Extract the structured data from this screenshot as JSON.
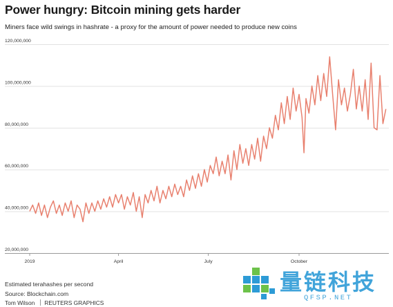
{
  "header": {
    "title": "Power hungry: Bitcoin mining gets harder",
    "subtitle": "Miners face wild swings in hashrate - a proxy for the amount of power needed to produce new coins"
  },
  "footer": {
    "unit_note": "Estimated terahashes per second",
    "source": "Source: Blockchain.com",
    "author": "Tom Wilson",
    "agency": "REUTERS GRAPHICS"
  },
  "watermark": {
    "text_cn": "量链科技",
    "text_en": "QFSP.NET",
    "colors": {
      "main": "#2d9bd6",
      "accent": "#6cc24a"
    }
  },
  "chart_data": {
    "type": "line",
    "title": "Power hungry: Bitcoin mining gets harder",
    "subtitle": "Miners face wild swings in hashrate - a proxy for the amount of power needed to produce new coins",
    "xlabel": "",
    "ylabel": "Estimated terahashes per second",
    "line_color": "#e8806e",
    "grid": "horizontal",
    "ylim": [
      20000000,
      120000000
    ],
    "yticks": [
      {
        "value": 120000000,
        "label": "120,000,000"
      },
      {
        "value": 100000000,
        "label": "100,000,000"
      },
      {
        "value": 80000000,
        "label": "80,000,000"
      },
      {
        "value": 60000000,
        "label": "60,000,000"
      },
      {
        "value": 40000000,
        "label": "40,000,000"
      },
      {
        "value": 20000000,
        "label": "20,000,000"
      }
    ],
    "xlim": [
      "2019-01-01",
      "2019-12-31"
    ],
    "xticks": [
      {
        "date": "2019-01-01",
        "label": "2019"
      },
      {
        "date": "2019-04-01",
        "label": "April"
      },
      {
        "date": "2019-07-01",
        "label": "July"
      },
      {
        "date": "2019-10-01",
        "label": "October"
      }
    ],
    "series": [
      {
        "values": [
          [
            "2019-01-01",
            40000000
          ],
          [
            "2019-01-04",
            43000000
          ],
          [
            "2019-01-07",
            39000000
          ],
          [
            "2019-01-10",
            44000000
          ],
          [
            "2019-01-13",
            38000000
          ],
          [
            "2019-01-16",
            43000000
          ],
          [
            "2019-01-19",
            37000000
          ],
          [
            "2019-01-22",
            42000000
          ],
          [
            "2019-01-25",
            45000000
          ],
          [
            "2019-01-28",
            39000000
          ],
          [
            "2019-01-31",
            43000000
          ],
          [
            "2019-02-03",
            38000000
          ],
          [
            "2019-02-06",
            44000000
          ],
          [
            "2019-02-09",
            40000000
          ],
          [
            "2019-02-12",
            45000000
          ],
          [
            "2019-02-15",
            37000000
          ],
          [
            "2019-02-18",
            43000000
          ],
          [
            "2019-02-21",
            41000000
          ],
          [
            "2019-02-24",
            35000000
          ],
          [
            "2019-02-27",
            44000000
          ],
          [
            "2019-03-02",
            39000000
          ],
          [
            "2019-03-05",
            44000000
          ],
          [
            "2019-03-08",
            40000000
          ],
          [
            "2019-03-11",
            45000000
          ],
          [
            "2019-03-14",
            41000000
          ],
          [
            "2019-03-17",
            46000000
          ],
          [
            "2019-03-20",
            42000000
          ],
          [
            "2019-03-23",
            47000000
          ],
          [
            "2019-03-26",
            42000000
          ],
          [
            "2019-03-29",
            48000000
          ],
          [
            "2019-04-01",
            44000000
          ],
          [
            "2019-04-04",
            48000000
          ],
          [
            "2019-04-07",
            41000000
          ],
          [
            "2019-04-10",
            47000000
          ],
          [
            "2019-04-13",
            43000000
          ],
          [
            "2019-04-16",
            49000000
          ],
          [
            "2019-04-19",
            40000000
          ],
          [
            "2019-04-22",
            47000000
          ],
          [
            "2019-04-25",
            37000000
          ],
          [
            "2019-04-28",
            48000000
          ],
          [
            "2019-05-01",
            44000000
          ],
          [
            "2019-05-04",
            50000000
          ],
          [
            "2019-05-07",
            45000000
          ],
          [
            "2019-05-10",
            52000000
          ],
          [
            "2019-05-13",
            44000000
          ],
          [
            "2019-05-16",
            50000000
          ],
          [
            "2019-05-19",
            46000000
          ],
          [
            "2019-05-22",
            52000000
          ],
          [
            "2019-05-25",
            47000000
          ],
          [
            "2019-05-28",
            53000000
          ],
          [
            "2019-05-31",
            48000000
          ],
          [
            "2019-06-03",
            52000000
          ],
          [
            "2019-06-06",
            47000000
          ],
          [
            "2019-06-09",
            55000000
          ],
          [
            "2019-06-12",
            50000000
          ],
          [
            "2019-06-15",
            57000000
          ],
          [
            "2019-06-18",
            51000000
          ],
          [
            "2019-06-21",
            58000000
          ],
          [
            "2019-06-24",
            52000000
          ],
          [
            "2019-06-27",
            60000000
          ],
          [
            "2019-06-30",
            54000000
          ],
          [
            "2019-07-03",
            62000000
          ],
          [
            "2019-07-06",
            58000000
          ],
          [
            "2019-07-09",
            66000000
          ],
          [
            "2019-07-12",
            57000000
          ],
          [
            "2019-07-15",
            64000000
          ],
          [
            "2019-07-18",
            58000000
          ],
          [
            "2019-07-21",
            67000000
          ],
          [
            "2019-07-24",
            55000000
          ],
          [
            "2019-07-27",
            69000000
          ],
          [
            "2019-07-30",
            60000000
          ],
          [
            "2019-08-02",
            72000000
          ],
          [
            "2019-08-05",
            63000000
          ],
          [
            "2019-08-08",
            70000000
          ],
          [
            "2019-08-11",
            62000000
          ],
          [
            "2019-08-14",
            72000000
          ],
          [
            "2019-08-17",
            65000000
          ],
          [
            "2019-08-20",
            75000000
          ],
          [
            "2019-08-23",
            64000000
          ],
          [
            "2019-08-26",
            76000000
          ],
          [
            "2019-08-29",
            70000000
          ],
          [
            "2019-09-01",
            80000000
          ],
          [
            "2019-09-04",
            75000000
          ],
          [
            "2019-09-07",
            86000000
          ],
          [
            "2019-09-10",
            79000000
          ],
          [
            "2019-09-13",
            92000000
          ],
          [
            "2019-09-16",
            82000000
          ],
          [
            "2019-09-19",
            95000000
          ],
          [
            "2019-09-22",
            84000000
          ],
          [
            "2019-09-25",
            99000000
          ],
          [
            "2019-09-28",
            88000000
          ],
          [
            "2019-10-01",
            96000000
          ],
          [
            "2019-10-04",
            85000000
          ],
          [
            "2019-10-06",
            68000000
          ],
          [
            "2019-10-08",
            94000000
          ],
          [
            "2019-10-11",
            87000000
          ],
          [
            "2019-10-14",
            100000000
          ],
          [
            "2019-10-17",
            91000000
          ],
          [
            "2019-10-20",
            105000000
          ],
          [
            "2019-10-23",
            93000000
          ],
          [
            "2019-10-26",
            106000000
          ],
          [
            "2019-10-29",
            95000000
          ],
          [
            "2019-11-01",
            114000000
          ],
          [
            "2019-11-04",
            96000000
          ],
          [
            "2019-11-07",
            79000000
          ],
          [
            "2019-11-10",
            103000000
          ],
          [
            "2019-11-13",
            91000000
          ],
          [
            "2019-11-16",
            99000000
          ],
          [
            "2019-11-19",
            88000000
          ],
          [
            "2019-11-22",
            96000000
          ],
          [
            "2019-11-25",
            108000000
          ],
          [
            "2019-11-28",
            89000000
          ],
          [
            "2019-12-01",
            100000000
          ],
          [
            "2019-12-04",
            88000000
          ],
          [
            "2019-12-07",
            103000000
          ],
          [
            "2019-12-10",
            84000000
          ],
          [
            "2019-12-13",
            111000000
          ],
          [
            "2019-12-16",
            80000000
          ],
          [
            "2019-12-19",
            79000000
          ],
          [
            "2019-12-22",
            105000000
          ],
          [
            "2019-12-25",
            82000000
          ],
          [
            "2019-12-28",
            89000000
          ]
        ]
      }
    ]
  }
}
